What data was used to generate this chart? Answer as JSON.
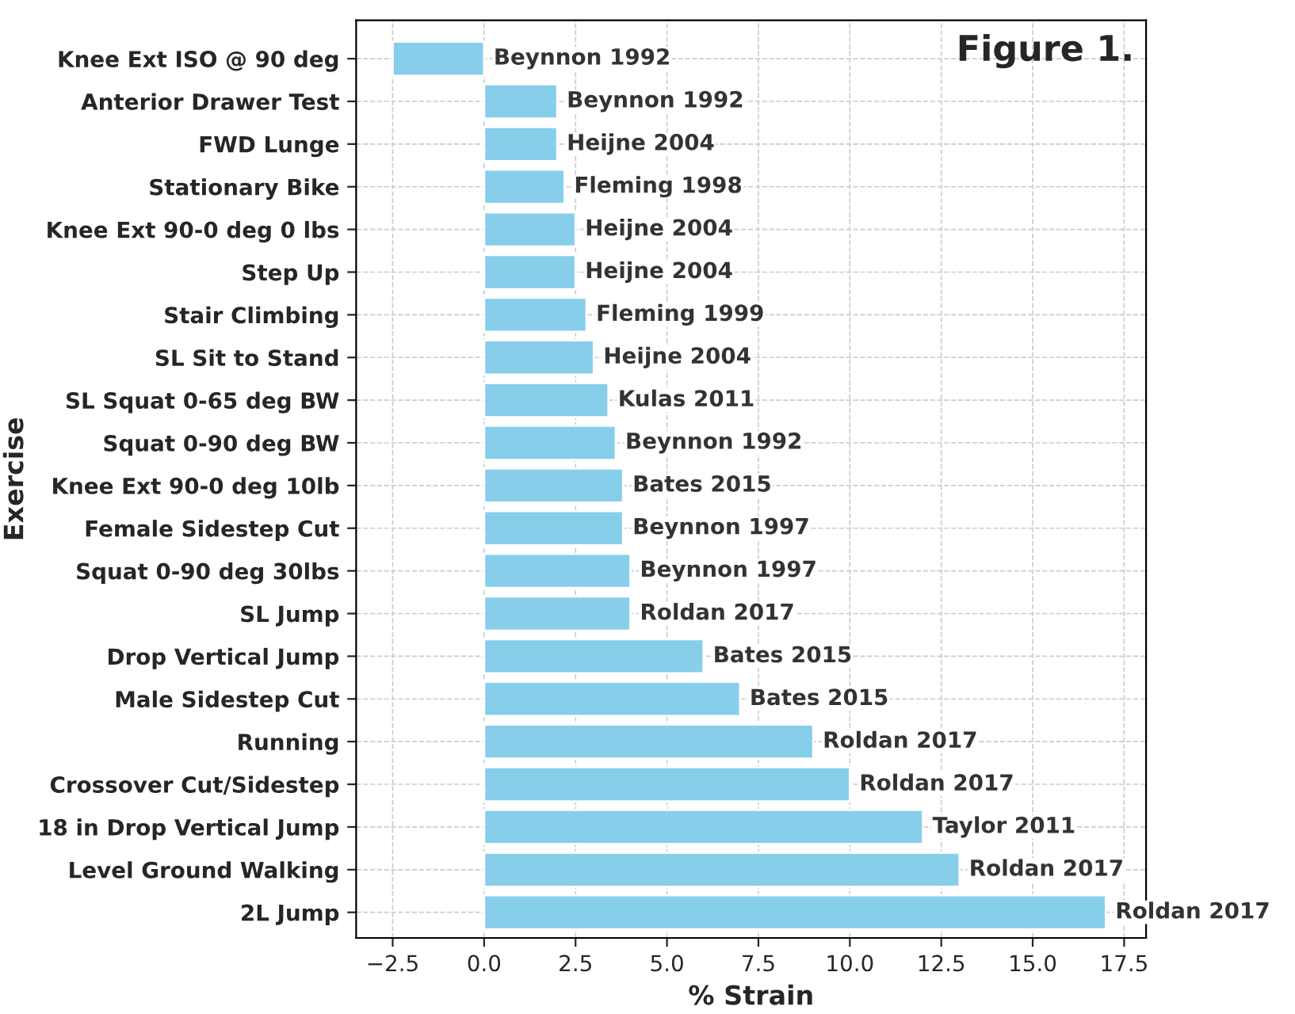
{
  "chart_data": {
    "type": "bar",
    "orientation": "horizontal",
    "xlabel": "% Strain",
    "ylabel": "Exercise",
    "categories": [
      "Knee Ext ISO @ 90 deg",
      "Anterior Drawer Test",
      "FWD Lunge",
      "Stationary Bike",
      "Knee Ext 90-0 deg 0 lbs",
      "Step Up",
      "Stair Climbing",
      "SL Sit to Stand",
      "SL Squat 0-65 deg BW",
      "Squat 0-90 deg BW",
      "Knee Ext 90-0 deg 10lb",
      "Female Sidestep Cut",
      "Squat 0-90 deg 30lbs",
      "SL Jump",
      "Drop Vertical Jump",
      "Male Sidestep Cut",
      "Running",
      "Crossover Cut/Sidestep",
      "18 in Drop Vertical Jump",
      "Level Ground Walking",
      "2L Jump"
    ],
    "values": [
      -2.5,
      2.0,
      2.0,
      2.2,
      2.5,
      2.5,
      2.8,
      3.0,
      3.4,
      3.6,
      3.8,
      3.8,
      4.0,
      4.0,
      6.0,
      7.0,
      9.0,
      10.0,
      12.0,
      13.0,
      17.0
    ],
    "value_labels": [
      "Beynnon 1992",
      "Beynnon 1992",
      "Heijne 2004",
      "Fleming 1998",
      "Heijne 2004",
      "Heijne 2004",
      "Fleming 1999",
      "Heijne 2004",
      "Kulas 2011",
      "Beynnon 1992",
      "Bates 2015",
      "Beynnon 1997",
      "Beynnon 1997",
      "Roldan 2017",
      "Bates 2015",
      "Bates 2015",
      "Roldan 2017",
      "Roldan 2017",
      "Taylor 2011",
      "Roldan 2017",
      "Roldan 2017"
    ],
    "color": "#87ceeb",
    "xlim": [
      -3.5,
      18.1
    ],
    "xticks": [
      {
        "value": -2.5,
        "label": "−2.5"
      },
      {
        "value": 0,
        "label": "0.0"
      },
      {
        "value": 2.5,
        "label": "2.5"
      },
      {
        "value": 5,
        "label": "5.0"
      },
      {
        "value": 7.5,
        "label": "7.5"
      },
      {
        "value": 10,
        "label": "10.0"
      },
      {
        "value": 12.5,
        "label": "12.5"
      },
      {
        "value": 15,
        "label": "15.0"
      },
      {
        "value": 17.5,
        "label": "17.5"
      }
    ],
    "grid": true,
    "annotations": [
      "Figure 1."
    ]
  }
}
